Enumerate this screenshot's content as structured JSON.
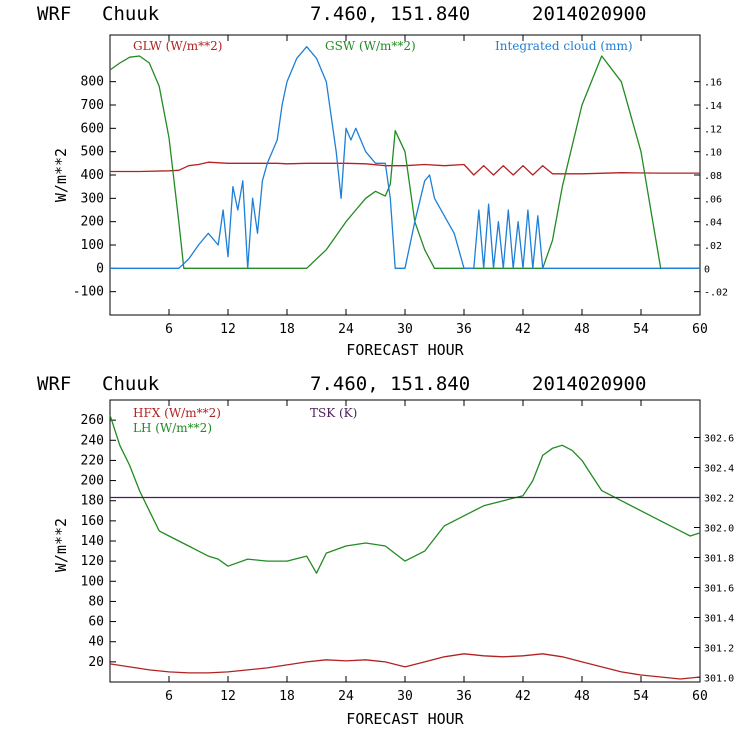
{
  "chart_data": [
    {
      "type": "line",
      "title": {
        "model": "WRF",
        "location": "Chuuk",
        "coords": "7.460, 151.840",
        "date": "2014020900"
      },
      "xlabel": "FORECAST HOUR",
      "ylabel": "W/m**2",
      "xlim": [
        0,
        60
      ],
      "ylim": [
        -200,
        1000
      ],
      "x_ticks": [
        "6",
        "12",
        "18",
        "24",
        "30",
        "36",
        "42",
        "48",
        "54",
        "60"
      ],
      "y_ticks": [
        "-100",
        "0",
        "100",
        "200",
        "300",
        "400",
        "500",
        "600",
        "700",
        "800"
      ],
      "y_ticks_values": [
        -100,
        0,
        100,
        200,
        300,
        400,
        500,
        600,
        700,
        800
      ],
      "y2_ticks": [
        "-.02",
        "0",
        ".02",
        ".04",
        ".06",
        ".08",
        ".10",
        ".12",
        ".14",
        ".16"
      ],
      "y2_ticks_values": [
        -0.02,
        0,
        0.02,
        0.04,
        0.06,
        0.08,
        0.1,
        0.12,
        0.14,
        0.16
      ],
      "y2lim": [
        -0.04,
        0.2
      ],
      "series": [
        {
          "name": "GLW (W/m**2)",
          "color": "#b22222",
          "axis": "left",
          "x": [
            0,
            3,
            6,
            7,
            8,
            9,
            10,
            12,
            14,
            16,
            17,
            18,
            20,
            22,
            24,
            26,
            28,
            30,
            32,
            34,
            36,
            37,
            38,
            39,
            40,
            41,
            42,
            43,
            44,
            45,
            48,
            52,
            56,
            60
          ],
          "y": [
            415,
            415,
            418,
            420,
            440,
            445,
            455,
            450,
            450,
            450,
            450,
            448,
            450,
            450,
            450,
            448,
            440,
            440,
            445,
            440,
            445,
            400,
            440,
            400,
            440,
            400,
            440,
            400,
            440,
            405,
            405,
            410,
            408,
            408
          ]
        },
        {
          "name": "GSW (W/m**2)",
          "color": "#228b22",
          "axis": "left",
          "x": [
            0,
            1,
            2,
            3,
            4,
            5,
            6,
            7,
            7.5,
            8,
            20,
            22,
            24,
            25,
            26,
            27,
            28,
            28.5,
            29,
            30,
            31,
            32,
            33,
            40,
            44,
            45,
            46,
            48,
            50,
            52,
            54,
            55,
            56,
            60
          ],
          "y": [
            850,
            880,
            905,
            910,
            880,
            780,
            560,
            200,
            0,
            0,
            0,
            80,
            200,
            250,
            300,
            330,
            310,
            360,
            590,
            500,
            200,
            80,
            0,
            0,
            0,
            120,
            350,
            700,
            910,
            800,
            500,
            250,
            0,
            0
          ]
        },
        {
          "name": "Integrated cloud (mm)",
          "color": "#1e7fd6",
          "axis": "right",
          "x": [
            0,
            7,
            8,
            9,
            10,
            11,
            11.5,
            12,
            12.5,
            13,
            13.5,
            14,
            14.5,
            15,
            15.5,
            16,
            17,
            17.5,
            18,
            19,
            20,
            21,
            22,
            23,
            23.5,
            24,
            24.5,
            25,
            26,
            27,
            28,
            28.5,
            29,
            29.5,
            30,
            31,
            32,
            32.5,
            33,
            34,
            35,
            36,
            36.5,
            37,
            37.5,
            38,
            38.5,
            39,
            39.5,
            40,
            40.5,
            41,
            41.5,
            42,
            42.5,
            43,
            43.5,
            44,
            60
          ],
          "y": [
            0,
            0,
            0.008,
            0.02,
            0.03,
            0.02,
            0.05,
            0.01,
            0.07,
            0.05,
            0.075,
            0.0,
            0.06,
            0.03,
            0.075,
            0.09,
            0.11,
            0.14,
            0.16,
            0.18,
            0.19,
            0.18,
            0.16,
            0.1,
            0.06,
            0.12,
            0.11,
            0.12,
            0.1,
            0.09,
            0.09,
            0.06,
            0.0,
            0.0,
            0.0,
            0.04,
            0.075,
            0.08,
            0.06,
            0.045,
            0.03,
            0.0,
            0.0,
            0.0,
            0.05,
            0.0,
            0.055,
            0.0,
            0.04,
            0.0,
            0.05,
            0.0,
            0.04,
            0.0,
            0.05,
            0.0,
            0.045,
            0.0,
            0.0
          ]
        }
      ]
    },
    {
      "type": "line",
      "title": {
        "model": "WRF",
        "location": "Chuuk",
        "coords": "7.460, 151.840",
        "date": "2014020900"
      },
      "xlabel": "FORECAST HOUR",
      "ylabel": "W/m**2",
      "xlim": [
        0,
        60
      ],
      "ylim": [
        0,
        280
      ],
      "x_ticks": [
        "6",
        "12",
        "18",
        "24",
        "30",
        "36",
        "42",
        "48",
        "54",
        "60"
      ],
      "y_ticks": [
        "20",
        "40",
        "60",
        "80",
        "100",
        "120",
        "140",
        "160",
        "180",
        "200",
        "220",
        "240",
        "260"
      ],
      "y_ticks_values": [
        20,
        40,
        60,
        80,
        100,
        120,
        140,
        160,
        180,
        200,
        220,
        240,
        260
      ],
      "y2_ticks": [
        "301.0",
        "301.2",
        "301.4",
        "301.6",
        "301.8",
        "302.0",
        "302.2",
        "302.4",
        "302.6"
      ],
      "y2_ticks_values": [
        301.0,
        301.2,
        301.4,
        301.6,
        301.8,
        302.0,
        302.2,
        302.4,
        302.6
      ],
      "y2lim": [
        300.97,
        302.85
      ],
      "series": [
        {
          "name": "HFX (W/m**2)",
          "color": "#b22222",
          "axis": "left",
          "x": [
            0,
            2,
            4,
            6,
            8,
            10,
            12,
            14,
            16,
            18,
            20,
            22,
            24,
            26,
            28,
            30,
            32,
            34,
            36,
            38,
            40,
            42,
            44,
            46,
            48,
            50,
            52,
            54,
            56,
            58,
            60
          ],
          "y": [
            18,
            15,
            12,
            10,
            9,
            9,
            10,
            12,
            14,
            17,
            20,
            22,
            21,
            22,
            20,
            15,
            20,
            25,
            28,
            26,
            25,
            26,
            28,
            25,
            20,
            15,
            10,
            7,
            5,
            3,
            5
          ]
        },
        {
          "name": "LH (W/m**2)",
          "color": "#228b22",
          "axis": "left",
          "x": [
            0,
            1,
            2,
            3,
            4,
            5,
            6,
            7,
            8,
            9,
            10,
            11,
            12,
            14,
            16,
            18,
            20,
            21,
            22,
            24,
            26,
            28,
            30,
            32,
            34,
            36,
            38,
            40,
            42,
            43,
            44,
            45,
            46,
            47,
            48,
            49,
            50,
            52,
            54,
            56,
            58,
            59,
            60
          ],
          "y": [
            265,
            235,
            215,
            190,
            170,
            150,
            145,
            140,
            135,
            130,
            125,
            122,
            115,
            122,
            120,
            120,
            125,
            108,
            128,
            135,
            138,
            135,
            120,
            130,
            155,
            165,
            175,
            180,
            185,
            200,
            225,
            232,
            235,
            230,
            220,
            205,
            190,
            180,
            170,
            160,
            150,
            145,
            148
          ]
        },
        {
          "name": "TSK (K)",
          "color": "#4b1e5a",
          "axis": "right",
          "x": [
            0,
            60
          ],
          "y": [
            302.2,
            302.2
          ]
        }
      ]
    }
  ]
}
